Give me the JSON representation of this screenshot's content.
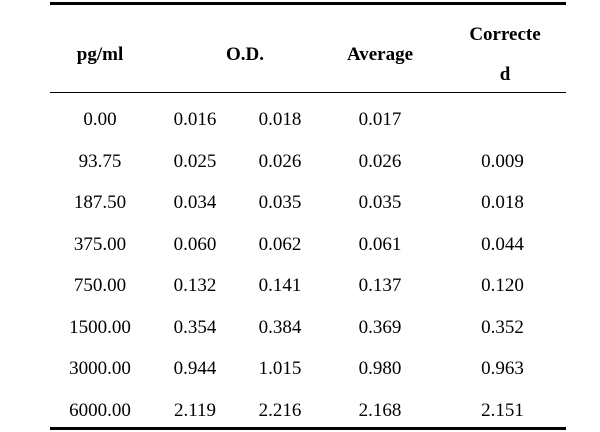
{
  "headers": {
    "pg_ml": "pg/ml",
    "od": "O.D.",
    "average": "Average",
    "corrected_line1": "Correcte",
    "corrected_line2": "d"
  },
  "rows": [
    {
      "pg_ml": "0.00",
      "od1": "0.016",
      "od2": "0.018",
      "average": "0.017",
      "corrected": ""
    },
    {
      "pg_ml": "93.75",
      "od1": "0.025",
      "od2": "0.026",
      "average": "0.026",
      "corrected": "0.009"
    },
    {
      "pg_ml": "187.50",
      "od1": "0.034",
      "od2": "0.035",
      "average": "0.035",
      "corrected": "0.018"
    },
    {
      "pg_ml": "375.00",
      "od1": "0.060",
      "od2": "0.062",
      "average": "0.061",
      "corrected": "0.044"
    },
    {
      "pg_ml": "750.00",
      "od1": "0.132",
      "od2": "0.141",
      "average": "0.137",
      "corrected": "0.120"
    },
    {
      "pg_ml": "1500.00",
      "od1": "0.354",
      "od2": "0.384",
      "average": "0.369",
      "corrected": "0.352"
    },
    {
      "pg_ml": "3000.00",
      "od1": "0.944",
      "od2": "1.015",
      "average": "0.980",
      "corrected": "0.963"
    },
    {
      "pg_ml": "6000.00",
      "od1": "2.119",
      "od2": "2.216",
      "average": "2.168",
      "corrected": "2.151"
    }
  ]
}
